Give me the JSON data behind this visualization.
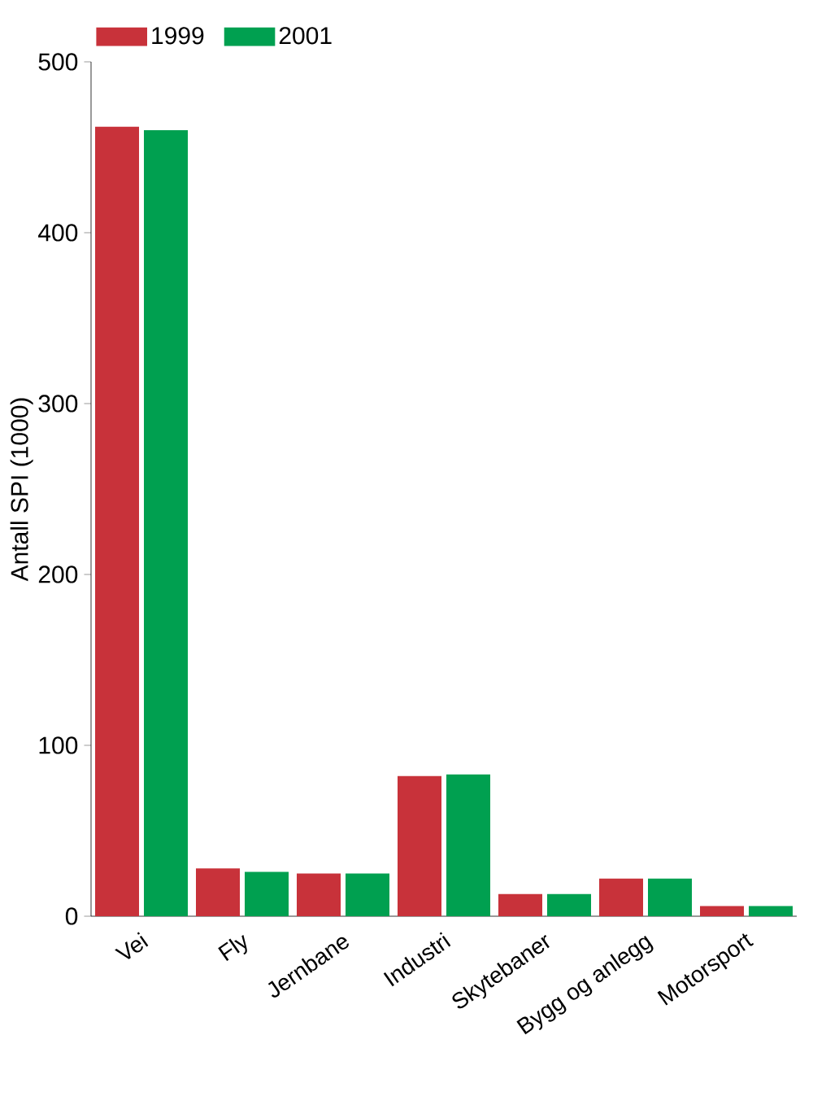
{
  "chart_data": {
    "type": "bar",
    "ylabel": "Antall SPI (1000)",
    "categories": [
      "Vei",
      "Fly",
      "Jernbane",
      "Industri",
      "Skytebaner",
      "Bygg og anlegg",
      "Motorsport"
    ],
    "series": [
      {
        "name": "1999",
        "color": "#c8323a",
        "values": [
          462,
          28,
          25,
          82,
          13,
          22,
          6
        ]
      },
      {
        "name": "2001",
        "color": "#00a050",
        "values": [
          460,
          26,
          25,
          83,
          13,
          22,
          6
        ]
      }
    ],
    "ylim": [
      0,
      500
    ],
    "yticks": [
      0,
      100,
      200,
      300,
      400,
      500
    ],
    "legend": "top left",
    "grid": false
  }
}
